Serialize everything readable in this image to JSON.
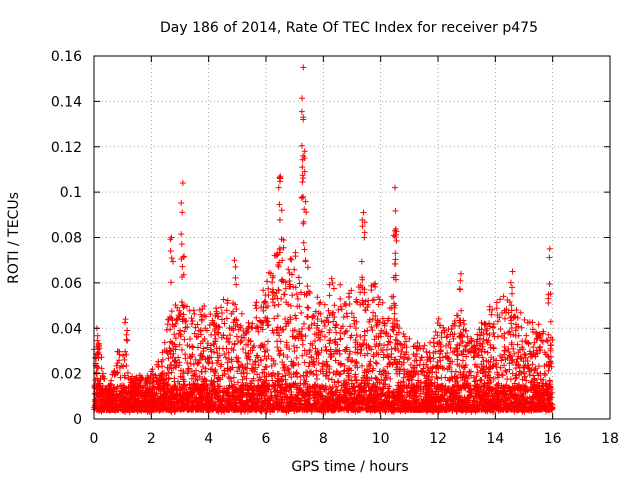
{
  "chart_data": {
    "type": "scatter",
    "title": "Day 186 of 2014, Rate Of TEC Index for receiver p475",
    "xlabel": "GPS time / hours",
    "ylabel": "ROTI / TECUs",
    "xlim": [
      0,
      18
    ],
    "ylim": [
      0,
      0.16
    ],
    "xticks": [
      "0",
      "2",
      "4",
      "6",
      "8",
      "10",
      "12",
      "14",
      "16",
      "18"
    ],
    "yticks": [
      "0",
      "0.02",
      "0.04",
      "0.06",
      "0.08",
      "0.1",
      "0.12",
      "0.14",
      "0.16"
    ],
    "grid": true,
    "marker": "+",
    "series_color": "#ff0000",
    "envelope": {
      "x": [
        0,
        0.2,
        0.4,
        0.6,
        0.8,
        1.0,
        1.2,
        1.4,
        1.6,
        1.8,
        2.0,
        2.2,
        2.4,
        2.6,
        2.8,
        3.0,
        3.2,
        3.4,
        3.6,
        3.8,
        4.0,
        4.2,
        4.4,
        4.6,
        4.8,
        5.0,
        5.2,
        5.4,
        5.6,
        5.8,
        6.0,
        6.2,
        6.4,
        6.6,
        6.8,
        7.0,
        7.2,
        7.4,
        7.6,
        7.8,
        8.0,
        8.2,
        8.4,
        8.6,
        8.8,
        9.0,
        9.2,
        9.4,
        9.6,
        9.8,
        10.0,
        10.2,
        10.4,
        10.6,
        10.8,
        11.0,
        11.2,
        11.4,
        11.6,
        11.8,
        12.0,
        12.2,
        12.4,
        12.6,
        12.8,
        13.0,
        13.2,
        13.4,
        13.6,
        13.8,
        14.0,
        14.2,
        14.4,
        14.6,
        14.8,
        15.0,
        15.2,
        15.4,
        15.6,
        15.8,
        16.0
      ],
      "typical_max": [
        0.032,
        0.035,
        0.014,
        0.018,
        0.03,
        0.03,
        0.02,
        0.018,
        0.02,
        0.018,
        0.022,
        0.025,
        0.03,
        0.045,
        0.05,
        0.055,
        0.05,
        0.05,
        0.048,
        0.05,
        0.052,
        0.05,
        0.05,
        0.055,
        0.055,
        0.05,
        0.048,
        0.045,
        0.05,
        0.055,
        0.06,
        0.07,
        0.075,
        0.08,
        0.07,
        0.075,
        0.07,
        0.07,
        0.06,
        0.055,
        0.05,
        0.06,
        0.065,
        0.06,
        0.055,
        0.06,
        0.065,
        0.06,
        0.06,
        0.06,
        0.055,
        0.05,
        0.055,
        0.048,
        0.04,
        0.038,
        0.035,
        0.035,
        0.032,
        0.035,
        0.045,
        0.04,
        0.04,
        0.045,
        0.05,
        0.04,
        0.035,
        0.04,
        0.045,
        0.05,
        0.05,
        0.055,
        0.055,
        0.05,
        0.05,
        0.045,
        0.045,
        0.045,
        0.04,
        0.038,
        0.035
      ],
      "baseline": 0.004
    },
    "spikes": [
      {
        "x": 0.1,
        "y": 0.04
      },
      {
        "x": 1.1,
        "y": 0.044
      },
      {
        "x": 2.7,
        "y": 0.08
      },
      {
        "x": 3.1,
        "y": 0.104
      },
      {
        "x": 4.9,
        "y": 0.07
      },
      {
        "x": 6.5,
        "y": 0.107
      },
      {
        "x": 7.3,
        "y": 0.155
      },
      {
        "x": 7.3,
        "y": 0.133
      },
      {
        "x": 7.35,
        "y": 0.118
      },
      {
        "x": 9.4,
        "y": 0.091
      },
      {
        "x": 10.5,
        "y": 0.102
      },
      {
        "x": 10.5,
        "y": 0.083
      },
      {
        "x": 12.8,
        "y": 0.064
      },
      {
        "x": 14.6,
        "y": 0.065
      },
      {
        "x": 15.9,
        "y": 0.075
      }
    ]
  }
}
